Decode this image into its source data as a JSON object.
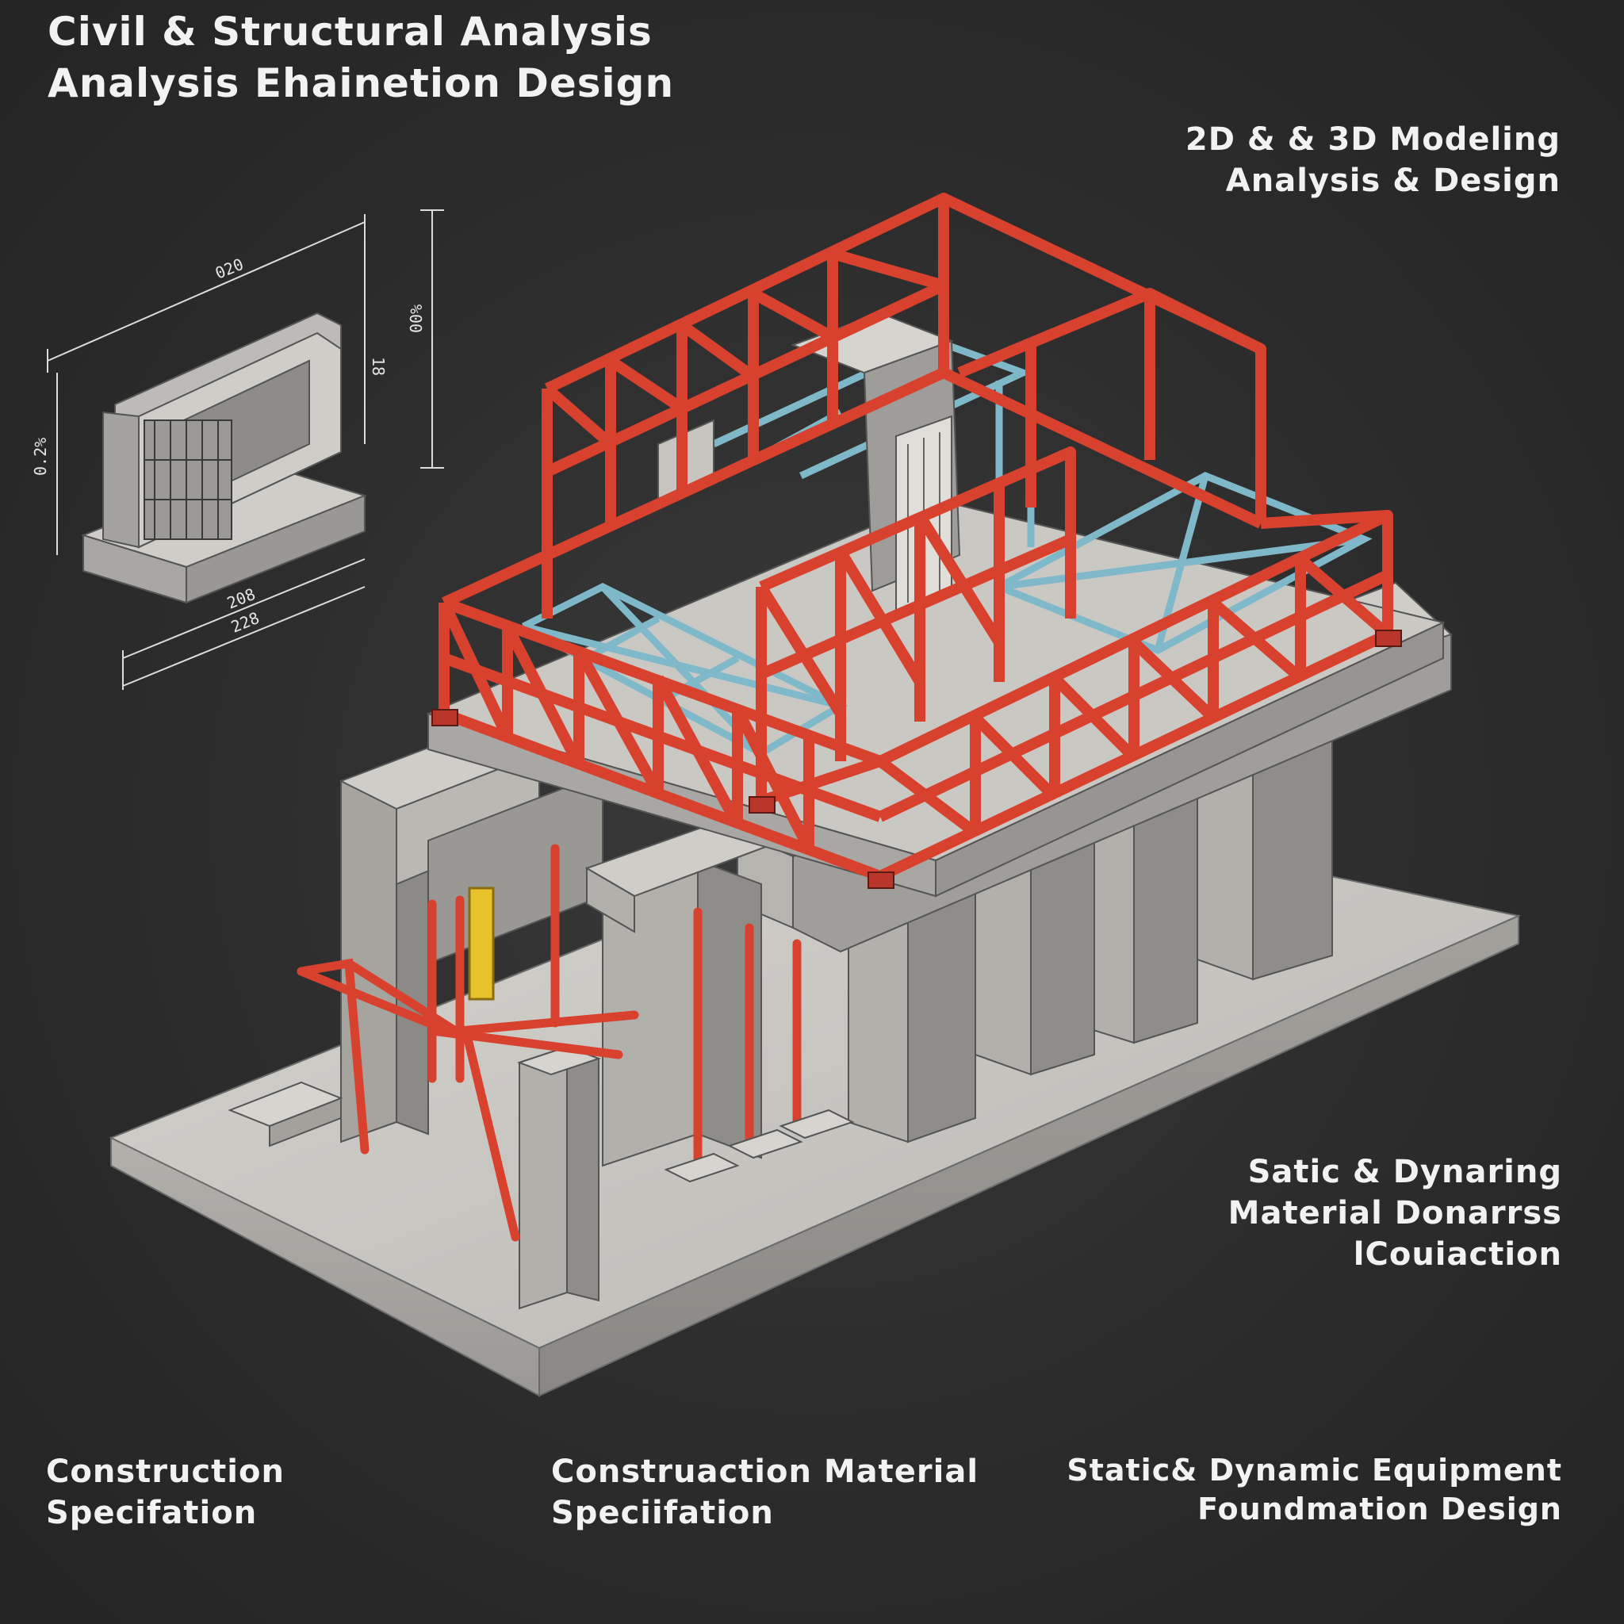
{
  "header": {
    "title_line1": "Civil & Structural Analysis",
    "title_line2": "Analysis Ehainetion Design"
  },
  "top_right": {
    "line1": "2D & & 3D Modeling",
    "line2": "Analysis  & Design"
  },
  "middle_right": {
    "line1": "Satic & Dynaring",
    "line2": "Material Donarrss",
    "line3": "lCouiaction"
  },
  "bottom_left": {
    "line1": "Construction",
    "line2": "Specifation"
  },
  "bottom_center": {
    "line1": "Construaction Material",
    "line2": "Speciifation"
  },
  "bottom_right": {
    "line1": "Static& Dynamic Equipment",
    "line2": "Foundmation Design"
  },
  "drawing": {
    "dim_top": "020",
    "dim_right_inner": "18",
    "dim_right_outer": "00%",
    "dim_left": "0.2%",
    "dim_bottom_upper": "208",
    "dim_bottom_lower": "228"
  },
  "colors": {
    "background": "#2c2c2c",
    "steel_frame": "#d9412f",
    "truss_secondary": "#7fb8c9",
    "concrete": "#c9c7c2",
    "accent_yellow": "#e8c22a"
  }
}
